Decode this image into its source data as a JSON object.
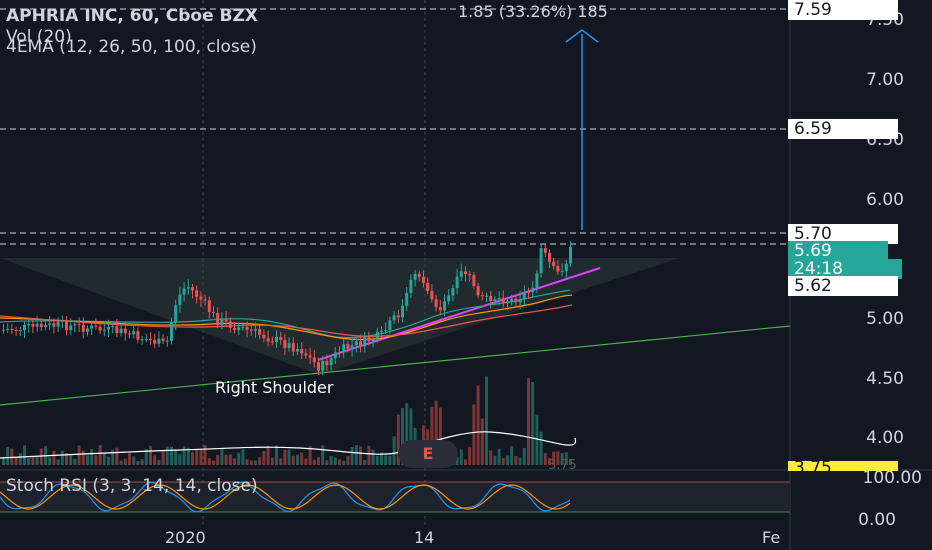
{
  "header": {
    "title": "APHRIA INC, 60, Cboe BZX",
    "volume": "Vol (20)",
    "ema": "4EMA (12, 26, 50, 100, close)",
    "measure": "1.85 (33.26%) 185"
  },
  "price_axis": {
    "ticks": [
      "7.50",
      "7.00",
      "6.50",
      "6.00",
      "5.00",
      "4.50",
      "4.00"
    ]
  },
  "price_tags": {
    "top": "7.59",
    "target": "6.59",
    "breakout": "5.70",
    "last": "5.69",
    "countdown": "24:18",
    "ema": "5.62",
    "low": "3.75"
  },
  "rsi": {
    "label": "Stoch RSI (3, 3, 14, 14, close)",
    "ticks": [
      "100.00",
      "0.00"
    ]
  },
  "time_axis": {
    "labels": [
      "2020",
      "14",
      "Fe"
    ]
  },
  "annotations": {
    "shoulder": "Right Shoulder",
    "earnings": "E",
    "vol_value": "3.75"
  },
  "colors": {
    "background": "#131722",
    "up": "#26a69a",
    "down": "#ef5350",
    "trend": "#e040fb",
    "target": "#2196f3",
    "green_line": "#4caf50"
  }
}
